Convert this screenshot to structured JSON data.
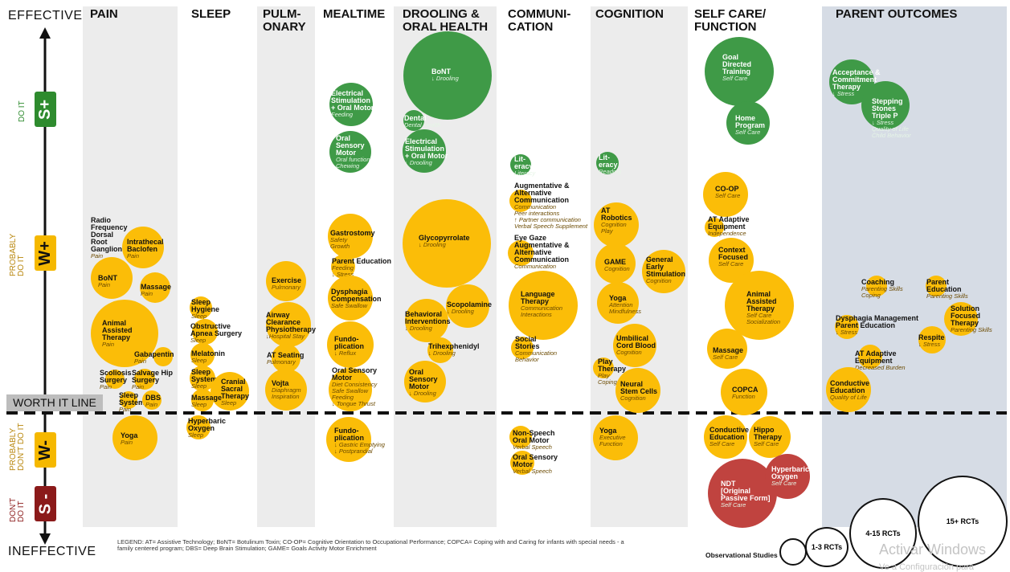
{
  "axis": {
    "top": "EFFECTIVE",
    "bottom": "INEFFECTIVE",
    "worth_it_line": "WORTH IT LINE",
    "levels": [
      {
        "code": "S+",
        "label": "DO IT",
        "color": "#2e8b2e"
      },
      {
        "code": "W+",
        "label": "PROBABLY\nDO IT",
        "color": "#f5b800"
      },
      {
        "code": "W-",
        "label": "PROBABLY\nDON'T DO IT",
        "color": "#f5b800"
      },
      {
        "code": "S -",
        "label": "DON'T\nDO IT",
        "color": "#8b1a1a"
      }
    ]
  },
  "columns": [
    "PAIN",
    "SLEEP",
    "PULM-\nONARY",
    "MEALTIME",
    "DROOLING &\nORAL HEALTH",
    "COMMUNI-\nCATION",
    "COGNITION",
    "SELF CARE/\nFUNCTION",
    "PARENT OUTCOMES"
  ],
  "bubbles": [
    {
      "title": "Radio\nFrequency\nDorsal\nRoot\nGanglion",
      "sub": "Pain"
    },
    {
      "title": "Intrathecal\nBaclofen",
      "sub": "Pain"
    },
    {
      "title": "BoNT",
      "sub": "Pain"
    },
    {
      "title": "Massage",
      "sub": "Pain"
    },
    {
      "title": "Animal\nAssisted\nTherapy",
      "sub": "Pain"
    },
    {
      "title": "Gabapentin",
      "sub": "Pain"
    },
    {
      "title": "Scoliosis\nSurgery",
      "sub": "Pain"
    },
    {
      "title": "Salvage Hip\nSurgery",
      "sub": "Pain"
    },
    {
      "title": "Sleep\nSystem",
      "sub": "Pain"
    },
    {
      "title": "DBS",
      "sub": "Pain"
    },
    {
      "title": "Yoga",
      "sub": "Pain"
    },
    {
      "title": "Sleep\nHygiene",
      "sub": "Sleep"
    },
    {
      "title": "Obstructive\nApnea Surgery",
      "sub": "Sleep"
    },
    {
      "title": "Melatonin",
      "sub": "Sleep"
    },
    {
      "title": "Sleep\nSystem",
      "sub": "Sleep"
    },
    {
      "title": "Cranial\nSacral\nTherapy",
      "sub": "Sleep"
    },
    {
      "title": "Massage",
      "sub": "Sleep"
    },
    {
      "title": "Hyperbaric\nOxygen",
      "sub": "Sleep"
    },
    {
      "title": "Exercise",
      "sub": "Pulmonary"
    },
    {
      "title": "Airway\nClearance\nPhysiotherapy",
      "sub": "↓Hospital Stay"
    },
    {
      "title": "AT Seating",
      "sub": "Pulmonary"
    },
    {
      "title": "Vojta",
      "sub": "Diaphragm\nInspiration"
    },
    {
      "title": "Electrical\nStimulation\n+ Oral Motor",
      "sub": "Feeding"
    },
    {
      "title": "Oral\nSensory\nMotor",
      "sub": "Oral function\nChewing"
    },
    {
      "title": "Gastrostomy",
      "sub": "Safety\nGrowth"
    },
    {
      "title": "Parent Education",
      "sub": "Feeding\n↓ Stress"
    },
    {
      "title": "Dysphagia\nCompensation",
      "sub": "Safe Swallow"
    },
    {
      "title": "Fundo-\nplication",
      "sub": "↓ Reflux"
    },
    {
      "title": "Oral Sensory\nMotor",
      "sub": "Diet Consistency\nSafe Swallow\nFeeding\n↓ Tongue Thrust"
    },
    {
      "title": "Fundo-\nplication",
      "sub": "↓ Gastric Emptying\n↓ Postprandial"
    },
    {
      "title": "BoNT",
      "sub": "↓ Drooling"
    },
    {
      "title": "Dental",
      "sub": "Dental Health"
    },
    {
      "title": "Electrical\nStimulation\n+ Oral Motor",
      "sub": "↓ Drooling"
    },
    {
      "title": "Glycopyrrolate",
      "sub": "↓ Drooling"
    },
    {
      "title": "Scopolamine",
      "sub": "↓ Drooling"
    },
    {
      "title": "Behavioral\nInterventions",
      "sub": "↓ Drooling"
    },
    {
      "title": "Trihexphenidyl",
      "sub": "↓ Drooling"
    },
    {
      "title": "Oral\nSensory\nMotor",
      "sub": "↓ Drooling"
    },
    {
      "title": "Lit-\neracy",
      "sub": "Literacy"
    },
    {
      "title": "Augmentative &\nAlternative\nCommunication",
      "sub": "Communication\nPeer interactions\n↑ Partner communication\nVerbal Speech Supplement"
    },
    {
      "title": "Eye Gaze\nAugmentative &\nAlternative\nCommunication",
      "sub": "Communication"
    },
    {
      "title": "Language\nTherapy",
      "sub": "Communication\nInteractions"
    },
    {
      "title": "Social\nStories",
      "sub": "Communication\nBehavior"
    },
    {
      "title": "Non-Speech\nOral Motor",
      "sub": "Verbal Speech"
    },
    {
      "title": "Oral Sensory\nMotor",
      "sub": "Verbal Speech"
    },
    {
      "title": "Lit-\neracy",
      "sub": "Reading"
    },
    {
      "title": "AT\nRobotics",
      "sub": "Cognition\nPlay"
    },
    {
      "title": "GAME",
      "sub": "Cognition"
    },
    {
      "title": "General\nEarly\nStimulation",
      "sub": "Cognition"
    },
    {
      "title": "Yoga",
      "sub": "Attention\nMindfulness"
    },
    {
      "title": "Umbilical\nCord Blood",
      "sub": "Cognition"
    },
    {
      "title": "Play\nTherapy",
      "sub": "Play\nCoping"
    },
    {
      "title": "Neural\nStem Cells",
      "sub": "Cognition"
    },
    {
      "title": "Yoga",
      "sub": "Executive\nFunction"
    },
    {
      "title": "Goal\nDirected\nTraining",
      "sub": "Self Care"
    },
    {
      "title": "Home\nProgram",
      "sub": "Self Care"
    },
    {
      "title": "CO-OP",
      "sub": "Self Care"
    },
    {
      "title": "AT Adaptive\nEquipment",
      "sub": "Independence"
    },
    {
      "title": "Context\nFocused",
      "sub": "Self Care"
    },
    {
      "title": "Animal\nAssisted\nTherapy",
      "sub": "Self Care\nSocialization"
    },
    {
      "title": "Massage",
      "sub": "Self Care"
    },
    {
      "title": "COPCA",
      "sub": "Function"
    },
    {
      "title": "Conductive\nEducation",
      "sub": "Self Care"
    },
    {
      "title": "Hippo\nTherapy",
      "sub": "Self Care"
    },
    {
      "title": "NDT\n[Original\nPassive Form]",
      "sub": "Self Care"
    },
    {
      "title": "Hyperbaric\nOxygen",
      "sub": "Self Care"
    },
    {
      "title": "Acceptance &\nCommitment\nTherapy",
      "sub": "↓ Stress"
    },
    {
      "title": "Stepping\nStones\nTriple P",
      "sub": "↓ Stress\nQuality of Life\nChild Behavior"
    },
    {
      "title": "Coaching",
      "sub": "Parenting Skills\nCoping"
    },
    {
      "title": "Parent\nEducation",
      "sub": "Parenting Skills"
    },
    {
      "title": "Dysphagia Management\nParent Education",
      "sub": "↓ Stress"
    },
    {
      "title": "Solution\nFocused\nTherapy",
      "sub": "Parenting Skills"
    },
    {
      "title": "Respite",
      "sub": "↓ Stress"
    },
    {
      "title": "AT Adaptive\nEquipment",
      "sub": "Decreased Burden"
    },
    {
      "title": "Conductive\nEducation",
      "sub": "Quality of Life"
    }
  ],
  "legend": {
    "text": "LEGEND: AT= Assistive Technology; BoNT= Botulinum Toxin; CO-OP= Cognitive Orientation to Occupational Performance; COPCA= Coping with and Caring for infants with special needs - a family centered program; DBS= Deep Brain Stimulation; GAME= Goals Activity Motor Enrichment",
    "sizes": [
      "Observational Studies ONLY",
      "1-3 RCTs",
      "4-15 RCTs",
      "15+ RCTs"
    ]
  },
  "watermark": {
    "line1": "Activar Windows",
    "line2": "Ve a Configuración para"
  }
}
